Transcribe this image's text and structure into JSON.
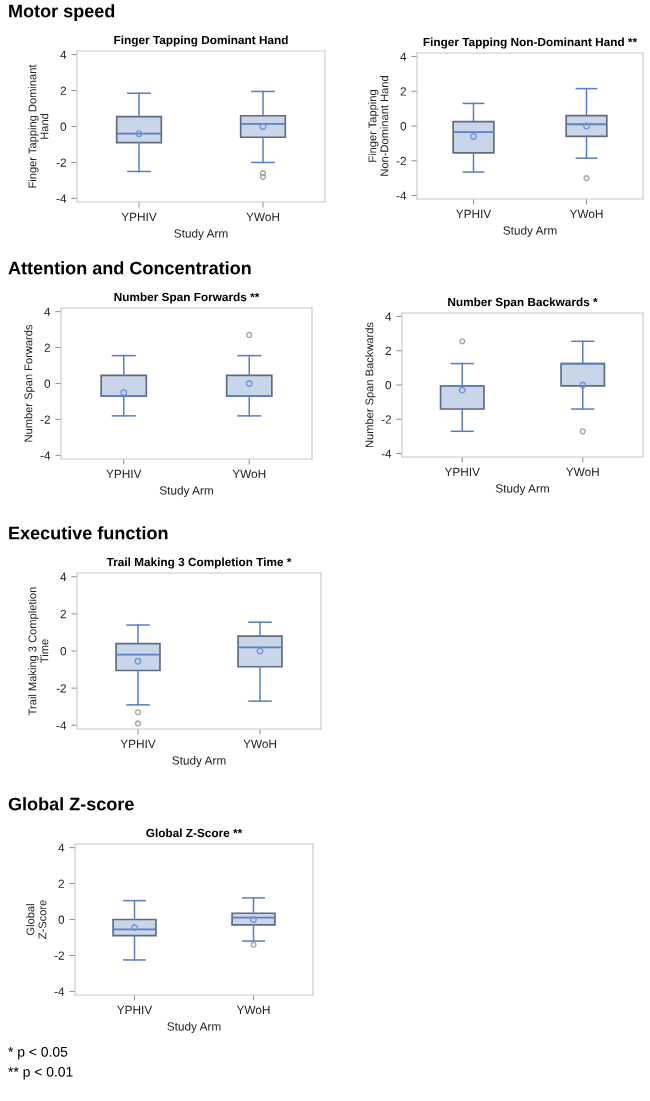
{
  "chart_data": [
    {
      "type": "box",
      "subtitle": "Motor speed",
      "title": "Finger Tapping Dominant Hand",
      "xlabel": "Study Arm",
      "ylabel": "Finger Tapping Dominant\nHand",
      "categories": [
        "YPHIV",
        "YWoH"
      ],
      "ylim": [
        -4.2,
        4.2
      ],
      "yticks": [
        -4,
        -2,
        0,
        2,
        4
      ],
      "color": "#c9d6e9",
      "boxes": [
        {
          "low": -2.5,
          "q1": -0.9,
          "median": -0.4,
          "q3": 0.55,
          "high": 1.85,
          "mean": -0.4
        },
        {
          "low": -2.0,
          "q1": -0.6,
          "median": 0.15,
          "q3": 0.6,
          "high": 1.95,
          "mean": 0.0,
          "outliers": [
            -2.6,
            -2.8
          ]
        }
      ]
    },
    {
      "type": "box",
      "title": "Finger Tapping Non-Dominant Hand **",
      "xlabel": "Study Arm",
      "ylabel": "Finger Tapping\nNon-Dominant Hand",
      "categories": [
        "YPHIV",
        "YWoH"
      ],
      "ylim": [
        -4.2,
        4.2
      ],
      "yticks": [
        -4,
        -2,
        0,
        2,
        4
      ],
      "color": "#c9d6e9",
      "boxes": [
        {
          "low": -2.65,
          "q1": -1.55,
          "median": -0.35,
          "q3": 0.25,
          "high": 1.3,
          "mean": -0.6
        },
        {
          "low": -1.85,
          "q1": -0.6,
          "median": 0.1,
          "q3": 0.6,
          "high": 2.15,
          "mean": 0.0,
          "outliers": [
            -3.0
          ]
        }
      ]
    },
    {
      "type": "box",
      "subtitle": "Attention and Concentration",
      "title": "Number Span Forwards **",
      "xlabel": "Study Arm",
      "ylabel": "Number Span Forwards",
      "categories": [
        "YPHIV",
        "YWoH"
      ],
      "ylim": [
        -4.2,
        4.2
      ],
      "yticks": [
        -4,
        -2,
        0,
        2,
        4
      ],
      "color": "#c9d6e9",
      "boxes": [
        {
          "low": -1.8,
          "q1": -0.7,
          "median": -0.7,
          "q3": 0.45,
          "high": 1.55,
          "mean": -0.5
        },
        {
          "low": -1.8,
          "q1": -0.7,
          "median": -0.7,
          "q3": 0.45,
          "high": 1.55,
          "mean": 0.0,
          "outliers": [
            2.7
          ]
        }
      ]
    },
    {
      "type": "box",
      "title": "Number Span Backwards *",
      "xlabel": "Study Arm",
      "ylabel": "Number Span Backwards",
      "categories": [
        "YPHIV",
        "YWoH"
      ],
      "ylim": [
        -4.2,
        4.2
      ],
      "yticks": [
        -4,
        -2,
        0,
        2,
        4
      ],
      "color": "#c9d6e9",
      "boxes": [
        {
          "low": -2.7,
          "q1": -1.4,
          "median": -0.05,
          "q3": -0.05,
          "high": 1.25,
          "mean": -0.3,
          "outliers": [
            2.55
          ]
        },
        {
          "low": -1.4,
          "q1": -0.05,
          "median": 1.25,
          "q3": 1.25,
          "high": 2.55,
          "mean": 0.0,
          "outliers": [
            -2.7
          ]
        }
      ]
    },
    {
      "type": "box",
      "subtitle": "Executive function",
      "title": "Trail Making 3 Completion Time *",
      "xlabel": "Study Arm",
      "ylabel": "Trail Making 3 Completion\nTime",
      "categories": [
        "YPHIV",
        "YWoH"
      ],
      "ylim": [
        -4.2,
        4.2
      ],
      "yticks": [
        -4,
        -2,
        0,
        2,
        4
      ],
      "color": "#c9d6e9",
      "boxes": [
        {
          "low": -2.9,
          "q1": -1.05,
          "median": -0.2,
          "q3": 0.4,
          "high": 1.4,
          "mean": -0.55,
          "outliers": [
            -3.3,
            -3.9
          ]
        },
        {
          "low": -2.7,
          "q1": -0.85,
          "median": 0.2,
          "q3": 0.8,
          "high": 1.55,
          "mean": 0.0
        }
      ]
    },
    {
      "type": "box",
      "subtitle": "Global Z-score",
      "title": "Global Z-Score **",
      "xlabel": "Study Arm",
      "ylabel": "Global\nZ-Score",
      "categories": [
        "YPHIV",
        "YWoH"
      ],
      "ylim": [
        -4.2,
        4.2
      ],
      "yticks": [
        -4,
        -2,
        0,
        2,
        4
      ],
      "color": "#c9d6e9",
      "boxes": [
        {
          "low": -2.25,
          "q1": -0.9,
          "median": -0.55,
          "q3": 0.0,
          "high": 1.05,
          "mean": -0.45
        },
        {
          "low": -1.2,
          "q1": -0.3,
          "median": 0.1,
          "q3": 0.35,
          "high": 1.2,
          "mean": 0.0,
          "outliers": [
            -1.4
          ]
        }
      ],
      "annotations": [
        "* p < 0.05",
        "** p < 0.01"
      ]
    }
  ]
}
